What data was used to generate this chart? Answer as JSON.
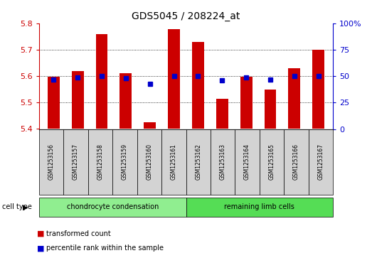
{
  "title": "GDS5045 / 208224_at",
  "samples": [
    "GSM1253156",
    "GSM1253157",
    "GSM1253158",
    "GSM1253159",
    "GSM1253160",
    "GSM1253161",
    "GSM1253162",
    "GSM1253163",
    "GSM1253164",
    "GSM1253165",
    "GSM1253166",
    "GSM1253167"
  ],
  "transformed_count": [
    5.597,
    5.62,
    5.76,
    5.61,
    5.425,
    5.778,
    5.73,
    5.515,
    5.598,
    5.55,
    5.63,
    5.7
  ],
  "percentile_rank": [
    47,
    49,
    50,
    48,
    43,
    50,
    50,
    46,
    49,
    47,
    50,
    50
  ],
  "ylim_left": [
    5.4,
    5.8
  ],
  "ylim_right": [
    0,
    100
  ],
  "yticks_left": [
    5.4,
    5.5,
    5.6,
    5.7,
    5.8
  ],
  "yticks_right": [
    0,
    25,
    50,
    75,
    100
  ],
  "bar_color": "#cc0000",
  "dot_color": "#0000cc",
  "baseline": 5.4,
  "cell_type_label": "cell type",
  "sample_box_color": "#d3d3d3",
  "chondro_color": "#90ee90",
  "limb_color": "#55dd55",
  "plot_bg": "#ffffff",
  "grid_yticks": [
    5.5,
    5.6,
    5.7
  ],
  "legend_labels": [
    "transformed count",
    "percentile rank within the sample"
  ]
}
